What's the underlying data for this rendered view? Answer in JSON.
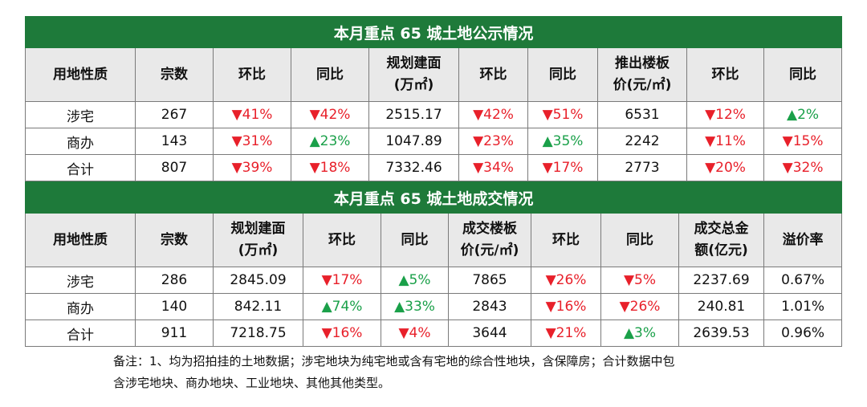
{
  "table1": {
    "title": "本月重点 65 城土地公示情况",
    "headers": [
      "用地性质",
      "宗数",
      "环比",
      "同比",
      "规划建面(万㎡)",
      "环比",
      "同比",
      "推出楼板价(元/㎡)",
      "环比",
      "同比"
    ],
    "header_lines": [
      [
        "用地性质"
      ],
      [
        "宗数"
      ],
      [
        "环比"
      ],
      [
        "同比"
      ],
      [
        "规划建面",
        "(万㎡)"
      ],
      [
        "环比"
      ],
      [
        "同比"
      ],
      [
        "推出楼板",
        "价(元/㎡)"
      ],
      [
        "环比"
      ],
      [
        "同比"
      ]
    ],
    "rows": [
      [
        "涉宅",
        "267",
        "▼41%",
        "▼42%",
        "2515.17",
        "▼42%",
        "▼51%",
        "6531",
        "▼12%",
        "▲2%"
      ],
      [
        "商办",
        "143",
        "▼31%",
        "▲23%",
        "1047.89",
        "▼23%",
        "▲35%",
        "2242",
        "▼11%",
        "▼15%"
      ],
      [
        "合计",
        "807",
        "▼39%",
        "▼18%",
        "7332.46",
        "▼34%",
        "▼17%",
        "2773",
        "▼20%",
        "▼32%"
      ]
    ]
  },
  "table2": {
    "title": "本月重点 65 城土地成交情况",
    "header_lines": [
      [
        "用地性质"
      ],
      [
        "宗数"
      ],
      [
        "规划建面",
        "(万㎡)"
      ],
      [
        "环比"
      ],
      [
        "同比"
      ],
      [
        "成交楼板",
        "价(元/㎡)"
      ],
      [
        "环比"
      ],
      [
        "同比"
      ],
      [
        "成交总金",
        "额(亿元)"
      ],
      [
        "溢价率"
      ]
    ],
    "rows": [
      [
        "涉宅",
        "286",
        "2845.09",
        "▼17%",
        "▲5%",
        "7865",
        "▼26%",
        "▼5%",
        "2237.69",
        "0.67%"
      ],
      [
        "商办",
        "140",
        "842.11",
        "▲74%",
        "▲33%",
        "2843",
        "▼16%",
        "▼26%",
        "240.81",
        "1.01%"
      ],
      [
        "合计",
        "911",
        "7218.75",
        "▼16%",
        "▼4%",
        "3644",
        "▼21%",
        "▲3%",
        "2639.53",
        "0.96%"
      ]
    ]
  },
  "note": {
    "line1": "备注：1、均为招拍挂的土地数据；涉宅地块为纯宅地或含有宅地的综合性地块，含保障房；合计数据中包",
    "line2": "含涉宅地块、商办地块、工业地块、其他其他类型。"
  },
  "colors": {
    "title_bg": "#1e7a3a",
    "header_bg": "#e9e9e9",
    "down": "#e8202a",
    "up": "#1aa049"
  }
}
